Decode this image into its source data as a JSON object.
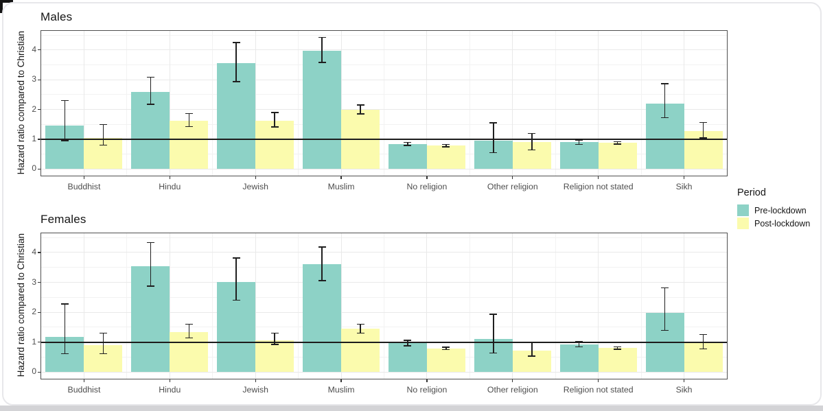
{
  "page": {
    "background": "#ffffff",
    "card_border_color": "#e7e7ea",
    "bottom_strip_color": "#d3d3d6",
    "corner_color": "#141414"
  },
  "chart_data": [
    {
      "type": "bar",
      "facet": "Males",
      "ylabel": "Hazard ratio compared to Christian",
      "categories": [
        "Buddhist",
        "Hindu",
        "Jewish",
        "Muslim",
        "No religion",
        "Other religion",
        "Religion not stated",
        "Sikh"
      ],
      "series": [
        {
          "name": "Pre-lockdown",
          "color": "#8DD2C6",
          "values": [
            1.45,
            2.6,
            3.55,
            3.97,
            0.84,
            0.95,
            0.9,
            2.21
          ],
          "ci_low": [
            0.95,
            2.18,
            2.93,
            3.58,
            0.79,
            0.55,
            0.83,
            1.73
          ],
          "ci_high": [
            2.3,
            3.08,
            4.25,
            4.42,
            0.9,
            1.55,
            0.97,
            2.87
          ]
        },
        {
          "name": "Post-lockdown",
          "color": "#FBFBAD",
          "values": [
            1.05,
            1.63,
            1.63,
            2.0,
            0.79,
            0.9,
            0.88,
            1.28
          ],
          "ci_low": [
            0.8,
            1.43,
            1.41,
            1.85,
            0.75,
            0.64,
            0.84,
            1.05
          ],
          "ci_high": [
            1.5,
            1.87,
            1.9,
            2.15,
            0.83,
            1.2,
            0.92,
            1.57
          ]
        }
      ],
      "yticks": [
        0,
        1,
        2,
        3,
        4
      ],
      "ylim": [
        -0.22,
        4.64
      ],
      "ref_line": 1,
      "grid": true,
      "legend_position": "right"
    },
    {
      "type": "bar",
      "facet": "Females",
      "ylabel": "Hazard ratio compared to Christian",
      "categories": [
        "Buddhist",
        "Hindu",
        "Jewish",
        "Muslim",
        "No religion",
        "Other religion",
        "Religion not stated",
        "Sikh"
      ],
      "series": [
        {
          "name": "Pre-lockdown",
          "color": "#8DD2C6",
          "values": [
            1.18,
            3.55,
            3.02,
            3.61,
            0.97,
            1.1,
            0.92,
            1.98
          ],
          "ci_low": [
            0.62,
            2.87,
            2.4,
            3.06,
            0.88,
            0.64,
            0.85,
            1.4
          ],
          "ci_high": [
            2.28,
            4.33,
            3.81,
            4.18,
            1.06,
            1.93,
            1.02,
            2.82
          ]
        },
        {
          "name": "Post-lockdown",
          "color": "#FBFBAD",
          "values": [
            0.9,
            1.35,
            1.07,
            1.45,
            0.79,
            0.72,
            0.81,
            1.0
          ],
          "ci_low": [
            0.62,
            1.14,
            0.93,
            1.3,
            0.75,
            0.54,
            0.77,
            0.78
          ],
          "ci_high": [
            1.3,
            1.6,
            1.3,
            1.6,
            0.83,
            0.98,
            0.85,
            1.26
          ]
        }
      ],
      "yticks": [
        0,
        1,
        2,
        3,
        4
      ],
      "ylim": [
        -0.22,
        4.64
      ],
      "ref_line": 1,
      "grid": true,
      "legend_position": "right"
    }
  ],
  "legend": {
    "title": "Period",
    "items": [
      {
        "label": "Pre-lockdown",
        "color": "#8DD2C6"
      },
      {
        "label": "Post-lockdown",
        "color": "#FBFBAD"
      }
    ]
  }
}
